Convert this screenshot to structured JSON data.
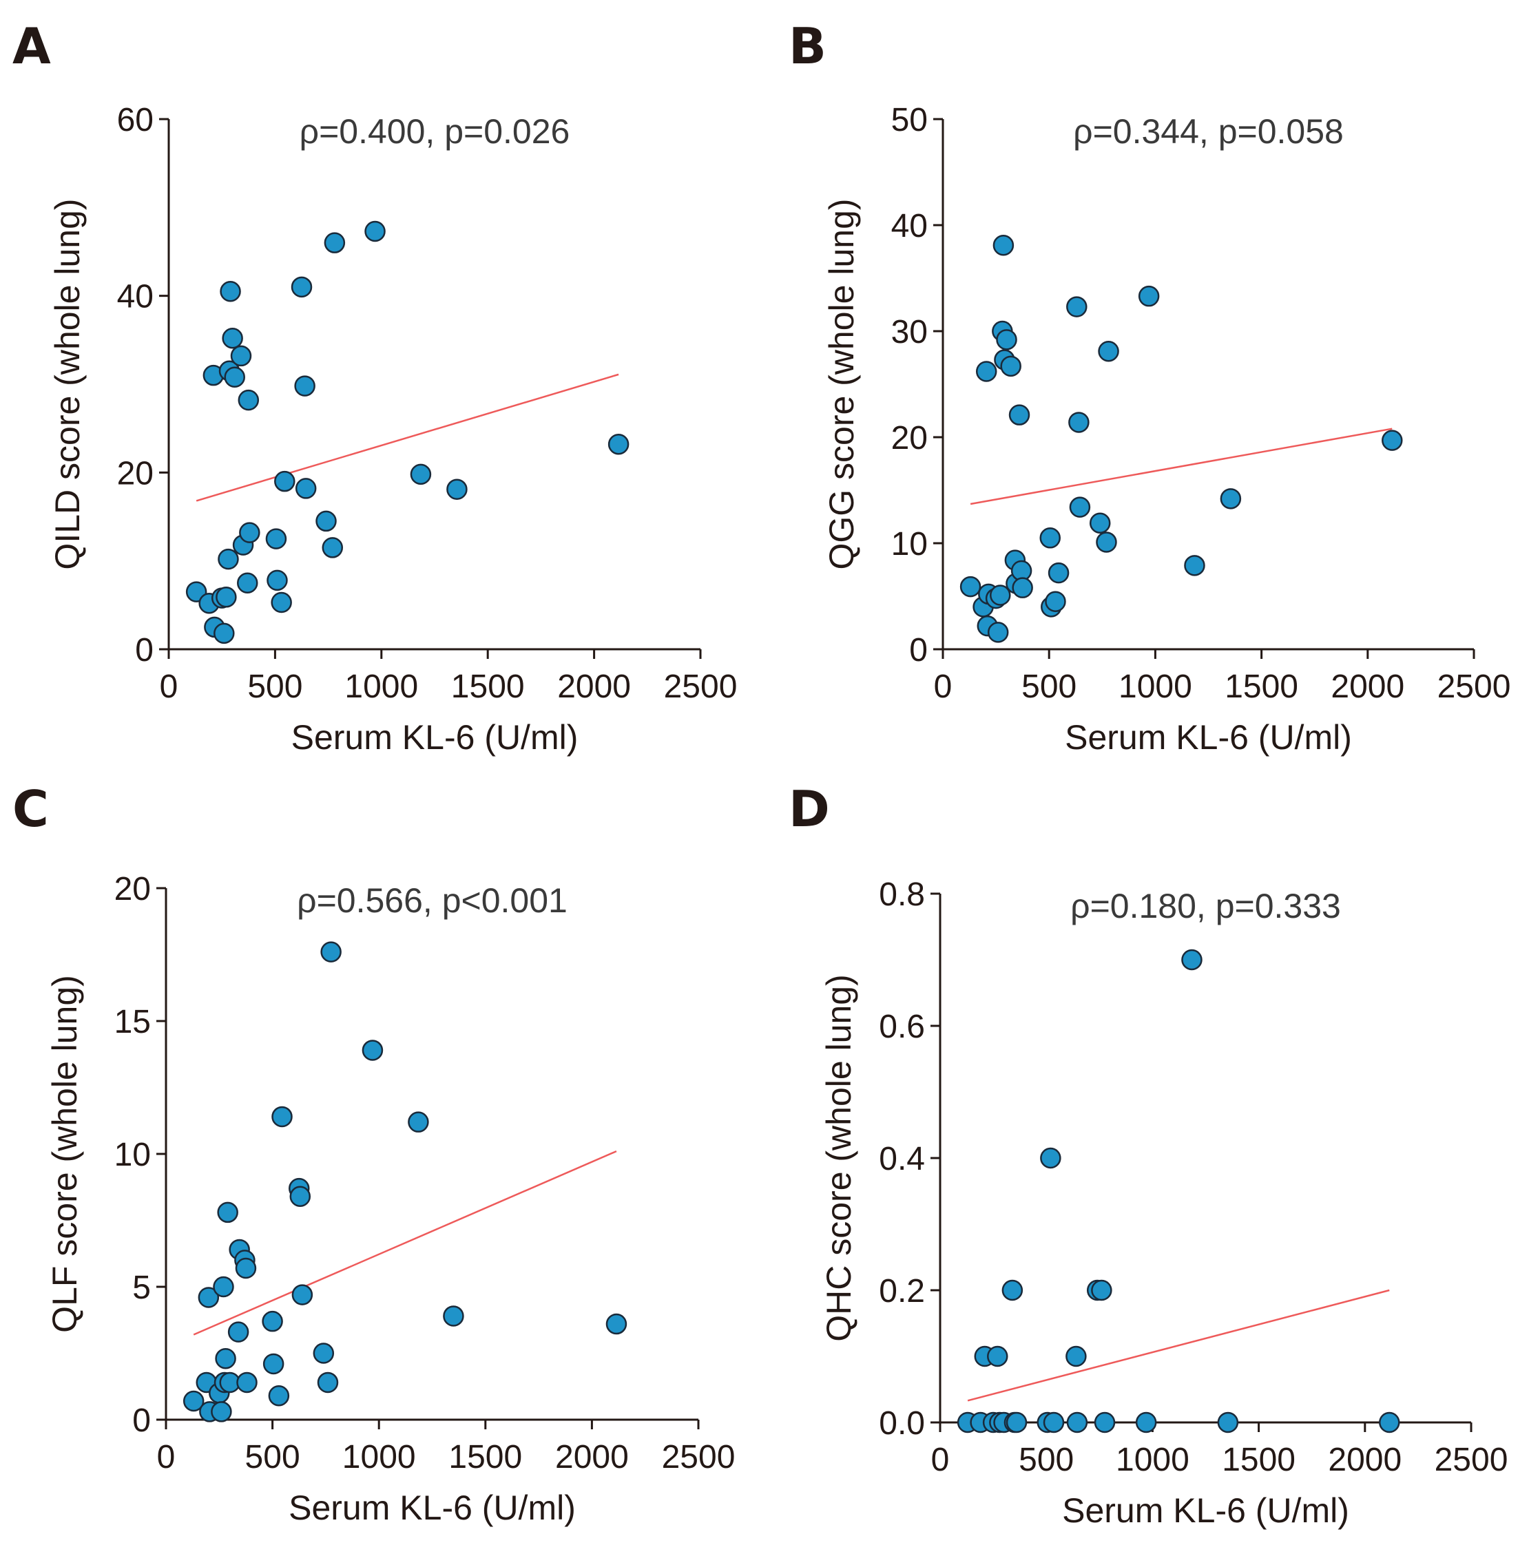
{
  "chart_data": [
    {
      "type": "scatter",
      "panel": "A",
      "annotation": "ρ=0.400, p=0.026",
      "xlabel": "Serum KL-6 (U/ml)",
      "ylabel": "QILD score (whole lung)",
      "xlim": [
        0,
        2500
      ],
      "ylim": [
        0,
        60
      ],
      "xticks": [
        0,
        500,
        1000,
        1500,
        2000,
        2500
      ],
      "yticks": [
        0,
        20,
        40,
        60
      ],
      "x": [
        130,
        190,
        210,
        215,
        250,
        260,
        270,
        280,
        285,
        290,
        300,
        310,
        340,
        350,
        370,
        375,
        380,
        505,
        510,
        530,
        545,
        625,
        640,
        645,
        740,
        770,
        780,
        970,
        1185,
        1355,
        2115
      ],
      "y": [
        6.5,
        5.2,
        31,
        2.5,
        5.8,
        1.8,
        5.9,
        10.2,
        31.5,
        40.5,
        35.2,
        30.8,
        33.2,
        11.8,
        7.5,
        28.2,
        13.2,
        12.5,
        7.8,
        5.3,
        19.0,
        41.0,
        29.8,
        18.2,
        14.5,
        11.5,
        46.0,
        47.3,
        19.8,
        18.1,
        23.2
      ],
      "fit": {
        "x": [
          130,
          2115
        ],
        "y": [
          16.8,
          31.1
        ]
      }
    },
    {
      "type": "scatter",
      "panel": "B",
      "annotation": "ρ=0.344, p=0.058",
      "xlabel": "Serum KL-6 (U/ml)",
      "ylabel": "QGG score (whole lung)",
      "xlim": [
        0,
        2500
      ],
      "ylim": [
        0,
        50
      ],
      "xticks": [
        0,
        500,
        1000,
        1500,
        2000,
        2500
      ],
      "yticks": [
        0,
        10,
        20,
        30,
        40,
        50
      ],
      "x": [
        130,
        190,
        205,
        210,
        215,
        250,
        260,
        270,
        280,
        285,
        290,
        300,
        320,
        340,
        345,
        360,
        370,
        375,
        505,
        510,
        530,
        545,
        630,
        640,
        645,
        740,
        770,
        780,
        970,
        1185,
        1355,
        2115
      ],
      "y": [
        5.9,
        4.0,
        26.2,
        2.2,
        5.2,
        4.8,
        1.6,
        5.1,
        30.0,
        38.1,
        27.3,
        29.2,
        26.7,
        8.4,
        6.2,
        22.1,
        7.4,
        5.8,
        10.5,
        4.0,
        4.5,
        7.2,
        32.3,
        21.4,
        13.4,
        11.9,
        10.1,
        28.1,
        33.3,
        7.9,
        14.2,
        19.7
      ],
      "fit": {
        "x": [
          130,
          2115
        ],
        "y": [
          13.7,
          20.8
        ]
      }
    },
    {
      "type": "scatter",
      "panel": "C",
      "annotation": "ρ=0.566, p<0.001",
      "xlabel": "Serum KL-6 (U/ml)",
      "ylabel": "QLF score (whole lung)",
      "xlim": [
        0,
        2500
      ],
      "ylim": [
        0,
        20
      ],
      "xticks": [
        0,
        500,
        1000,
        1500,
        2000,
        2500
      ],
      "yticks": [
        0,
        5,
        10,
        15,
        20
      ],
      "x": [
        130,
        190,
        200,
        205,
        250,
        260,
        270,
        275,
        280,
        290,
        300,
        340,
        345,
        370,
        375,
        380,
        500,
        505,
        530,
        545,
        625,
        630,
        640,
        740,
        760,
        775,
        970,
        1185,
        1350,
        2115
      ],
      "y": [
        0.7,
        1.4,
        4.6,
        0.3,
        1.0,
        0.3,
        5.0,
        1.4,
        2.3,
        7.8,
        1.4,
        3.3,
        6.4,
        6.0,
        5.7,
        1.4,
        3.7,
        2.1,
        0.9,
        11.4,
        8.7,
        8.4,
        4.7,
        2.5,
        1.4,
        17.6,
        13.9,
        11.2,
        3.9,
        3.6
      ],
      "fit": {
        "x": [
          130,
          2115
        ],
        "y": [
          3.2,
          10.1
        ]
      }
    },
    {
      "type": "scatter",
      "panel": "D",
      "annotation": "ρ=0.180, p=0.333",
      "xlabel": "Serum KL-6 (U/ml)",
      "ylabel": "QHC score (whole lung)",
      "xlim": [
        0,
        2500
      ],
      "ylim": [
        0,
        0.8
      ],
      "xticks": [
        0,
        500,
        1000,
        1500,
        2000,
        2500
      ],
      "yticks": [
        0.0,
        0.2,
        0.4,
        0.6,
        0.8
      ],
      "ytick_labels": [
        "0.0",
        "0.2",
        "0.4",
        "0.6",
        "0.8"
      ],
      "x": [
        130,
        190,
        210,
        250,
        270,
        280,
        300,
        340,
        350,
        360,
        505,
        520,
        535,
        640,
        645,
        740,
        760,
        775,
        970,
        1185,
        1355,
        2115
      ],
      "y": [
        0,
        0,
        0.1,
        0,
        0.1,
        0,
        0,
        0.2,
        0,
        0,
        0,
        0.4,
        0,
        0.1,
        0,
        0.2,
        0.2,
        0,
        0,
        0.7,
        0,
        0
      ],
      "fit": {
        "x": [
          130,
          2115
        ],
        "y": [
          0.033,
          0.2
        ]
      }
    }
  ]
}
